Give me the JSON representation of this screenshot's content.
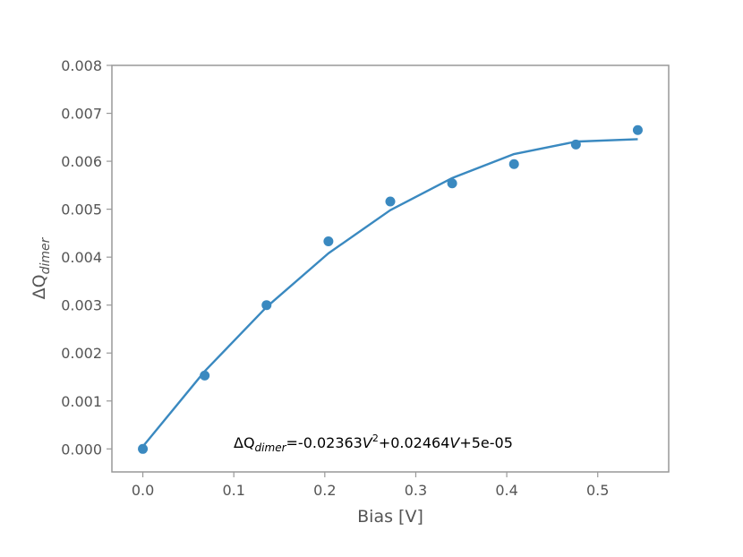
{
  "chart_data": {
    "type": "scatter",
    "xlabel": "Bias [V]",
    "ylabel": {
      "main": "ΔQ",
      "sub": "dimer"
    },
    "xlim": [
      -0.034,
      0.578
    ],
    "ylim": [
      -0.00048,
      0.008
    ],
    "xticks": [
      0.0,
      0.1,
      0.2,
      0.3,
      0.4,
      0.5
    ],
    "xtick_labels": [
      "0.0",
      "0.1",
      "0.2",
      "0.3",
      "0.4",
      "0.5"
    ],
    "yticks": [
      0.0,
      0.001,
      0.002,
      0.003,
      0.004,
      0.005,
      0.006,
      0.007,
      0.008
    ],
    "ytick_labels": [
      "0.000",
      "0.001",
      "0.002",
      "0.003",
      "0.004",
      "0.005",
      "0.006",
      "0.007",
      "0.008"
    ],
    "grid": false,
    "color": "#3a89c0",
    "series": [
      {
        "kind": "points",
        "x": [
          0.0,
          0.068,
          0.136,
          0.204,
          0.272,
          0.34,
          0.408,
          0.476,
          0.544
        ],
        "y": [
          0.0,
          0.00153,
          0.003,
          0.00433,
          0.00516,
          0.00554,
          0.00594,
          0.00635,
          0.00665
        ]
      },
      {
        "kind": "line",
        "x": [
          0.0,
          0.068,
          0.136,
          0.204,
          0.272,
          0.34,
          0.408,
          0.476,
          0.544
        ],
        "y": [
          5e-05,
          0.00162,
          0.00296,
          0.00408,
          0.00498,
          0.00565,
          0.00615,
          0.00641,
          0.00646
        ]
      }
    ],
    "annotation": {
      "prefix": "ΔQ",
      "sub": "dimer",
      "part1": "=-0.02363",
      "var1": "V",
      "exp": "2",
      "part2": "+0.02464",
      "var2": "V",
      "part3": "+5e-05"
    }
  }
}
